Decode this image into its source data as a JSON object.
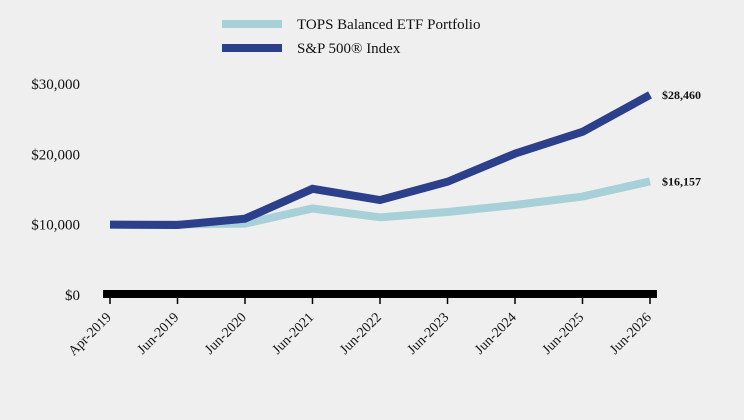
{
  "chart_data": {
    "type": "line",
    "categories": [
      "Apr-2019",
      "Jun-2019",
      "Jun-2020",
      "Jun-2021",
      "Jun-2022",
      "Jun-2023",
      "Jun-2024",
      "Jun-2025",
      "Jun-2026"
    ],
    "series": [
      {
        "name": "TOPS Balanced ETF Portfolio",
        "color": "#a8d0d8",
        "values": [
          10000,
          10050,
          10150,
          12300,
          11050,
          11800,
          12800,
          14000,
          16157
        ],
        "end_label": "$16,157"
      },
      {
        "name": "S&P 500® Index",
        "color": "#2b3f8a",
        "values": [
          10000,
          9950,
          10850,
          15100,
          13500,
          16100,
          20100,
          23200,
          28460
        ],
        "end_label": "$28,460"
      }
    ],
    "y_ticks": [
      {
        "value": 0,
        "label": "$0"
      },
      {
        "value": 10000,
        "label": "$10,000"
      },
      {
        "value": 20000,
        "label": "$20,000"
      },
      {
        "value": 30000,
        "label": "$30,000"
      }
    ],
    "ylim": [
      0,
      30000
    ],
    "grid": false,
    "legend_position": "top-center"
  }
}
